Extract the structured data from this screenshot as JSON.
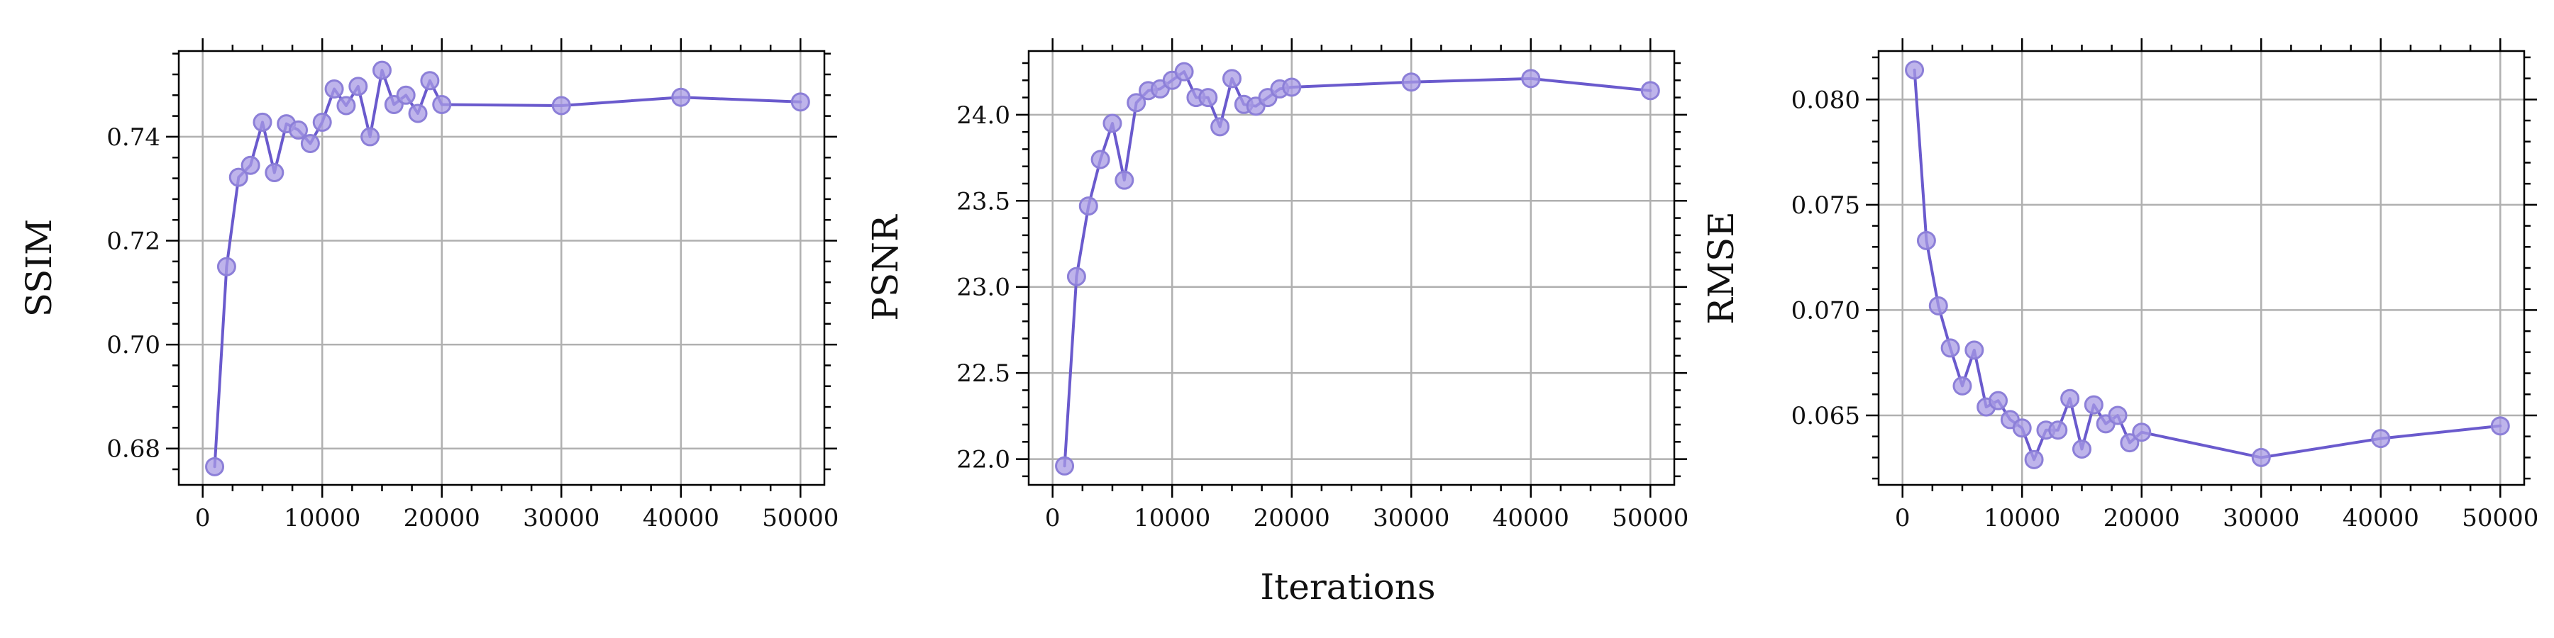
{
  "figure": {
    "shared_xlabel": "Iterations"
  },
  "style": {
    "line_color": "#6a5acd",
    "marker_fill": "#a89be4",
    "marker_edge": "#8c7fd8",
    "grid_color": "#b0b0b0"
  },
  "chart_data": [
    {
      "type": "line",
      "ylabel": "SSIM",
      "xlim": [
        -2000,
        52000
      ],
      "ylim": [
        0.673,
        0.7565
      ],
      "xticks": [
        0,
        10000,
        20000,
        30000,
        40000,
        50000
      ],
      "yticks": [
        0.68,
        0.7,
        0.72,
        0.74
      ],
      "yticklabels": [
        "0.68",
        "0.70",
        "0.72",
        "0.74"
      ],
      "grid": true,
      "series": [
        {
          "x": [
            1000,
            2000,
            3000,
            4000,
            5000,
            6000,
            7000,
            8000,
            9000,
            10000,
            11000,
            12000,
            13000,
            14000,
            15000,
            16000,
            17000,
            18000,
            19000,
            20000,
            30000,
            40000,
            50000
          ],
          "values": [
            0.6765,
            0.715,
            0.7322,
            0.7345,
            0.7428,
            0.7331,
            0.7425,
            0.7413,
            0.7387,
            0.7428,
            0.7492,
            0.746,
            0.7497,
            0.74,
            0.7528,
            0.7462,
            0.748,
            0.7445,
            0.7508,
            0.7462,
            0.746,
            0.7476,
            0.7467
          ]
        }
      ]
    },
    {
      "type": "line",
      "ylabel": "PSNR",
      "xlim": [
        -2000,
        52000
      ],
      "ylim": [
        21.85,
        24.37
      ],
      "xticks": [
        0,
        10000,
        20000,
        30000,
        40000,
        50000
      ],
      "yticks": [
        22.0,
        22.5,
        23.0,
        23.5,
        24.0
      ],
      "yticklabels": [
        "22.0",
        "22.5",
        "23.0",
        "23.5",
        "24.0"
      ],
      "grid": true,
      "series": [
        {
          "x": [
            1000,
            2000,
            3000,
            4000,
            5000,
            6000,
            7000,
            8000,
            9000,
            10000,
            11000,
            12000,
            13000,
            14000,
            15000,
            16000,
            17000,
            18000,
            19000,
            20000,
            30000,
            40000,
            50000
          ],
          "values": [
            21.96,
            23.06,
            23.47,
            23.74,
            23.95,
            23.62,
            24.07,
            24.14,
            24.15,
            24.2,
            24.25,
            24.1,
            24.1,
            23.93,
            24.21,
            24.06,
            24.05,
            24.1,
            24.15,
            24.16,
            24.19,
            24.21,
            24.14
          ]
        }
      ]
    },
    {
      "type": "line",
      "ylabel": "RMSE",
      "xlim": [
        -2000,
        52000
      ],
      "ylim": [
        0.0617,
        0.0823
      ],
      "xticks": [
        0,
        10000,
        20000,
        30000,
        40000,
        50000
      ],
      "yticks": [
        0.065,
        0.07,
        0.075,
        0.08
      ],
      "yticklabels": [
        "0.065",
        "0.070",
        "0.075",
        "0.080"
      ],
      "grid": true,
      "series": [
        {
          "x": [
            1000,
            2000,
            3000,
            4000,
            5000,
            6000,
            7000,
            8000,
            9000,
            10000,
            11000,
            12000,
            13000,
            14000,
            15000,
            16000,
            17000,
            18000,
            19000,
            20000,
            30000,
            40000,
            50000
          ],
          "values": [
            0.0814,
            0.0733,
            0.0702,
            0.0682,
            0.0664,
            0.0681,
            0.0654,
            0.0657,
            0.0648,
            0.0644,
            0.0629,
            0.0643,
            0.0643,
            0.0658,
            0.0634,
            0.0655,
            0.0646,
            0.065,
            0.0637,
            0.0642,
            0.063,
            0.0639,
            0.0645
          ]
        }
      ]
    }
  ]
}
